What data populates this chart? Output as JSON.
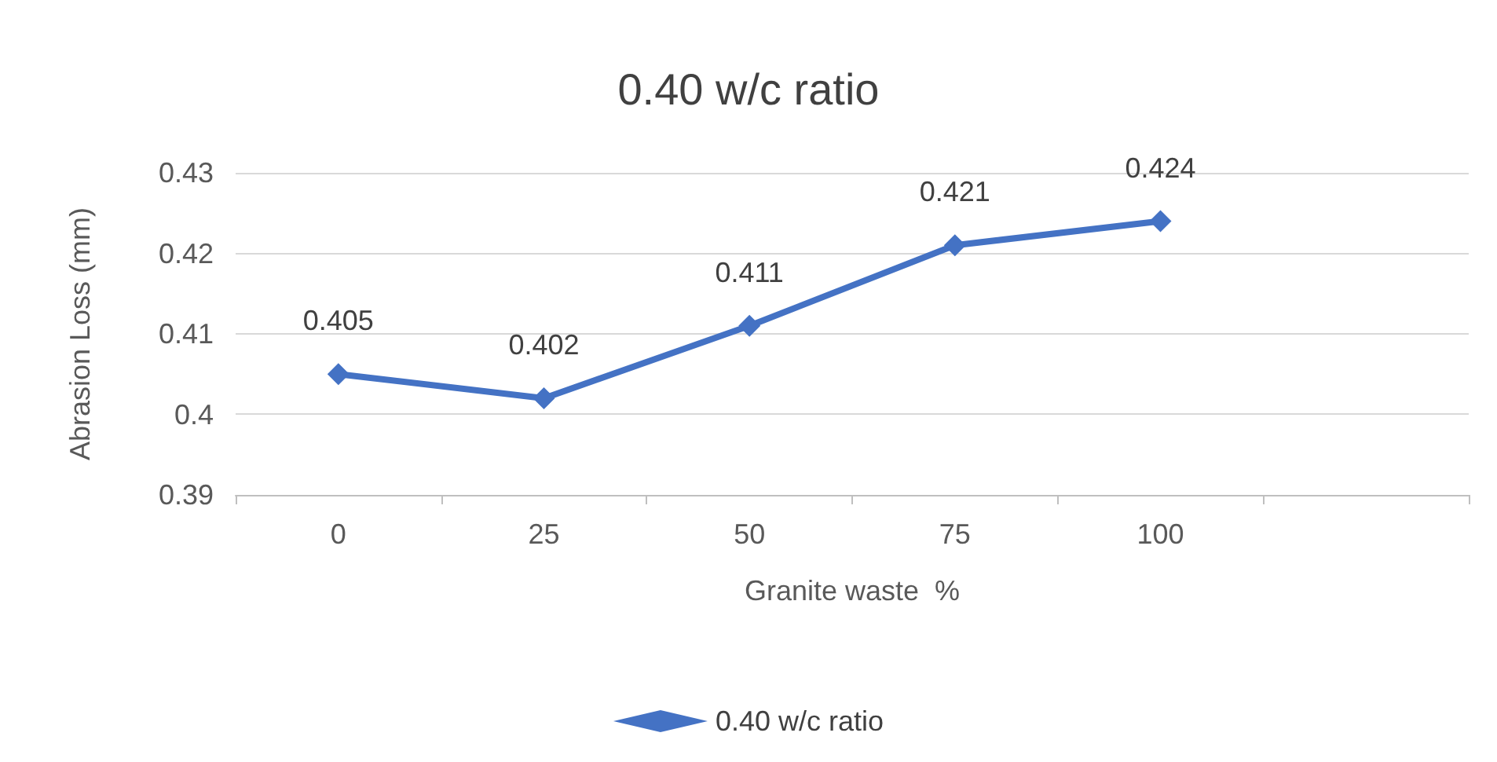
{
  "chart_data": {
    "type": "line",
    "title": "0.40 w/c ratio",
    "xlabel": "Granite waste  %",
    "ylabel": "Abrasion Loss (mm)",
    "categories": [
      "0",
      "25",
      "50",
      "75",
      "100",
      null
    ],
    "series": [
      {
        "name": "0.40 w/c ratio",
        "color": "#4472c4",
        "values": [
          0.405,
          0.402,
          0.411,
          0.421,
          0.424,
          null
        ]
      }
    ],
    "ylim": [
      0.39,
      0.43
    ],
    "yticks": [
      0.39,
      0.4,
      0.41,
      0.42,
      0.43
    ],
    "grid": "y",
    "legend": "bottom",
    "marker": "diamond",
    "line_style": "solid",
    "data_labels": true
  }
}
